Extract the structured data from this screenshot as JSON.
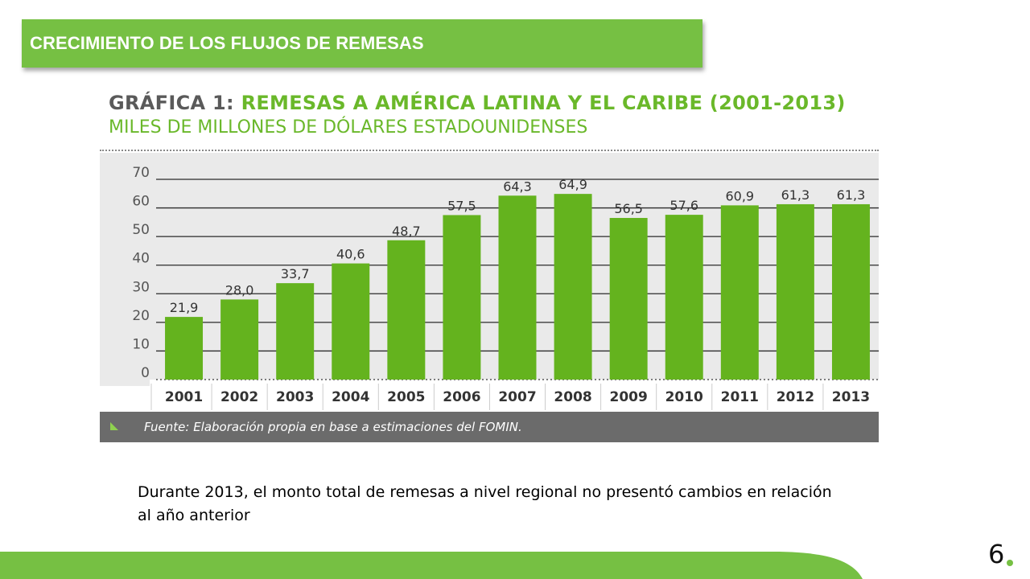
{
  "header": {
    "title": "CRECIMIENTO DE LOS FLUJOS DE REMESAS"
  },
  "chart_data": {
    "type": "bar",
    "title_prefix": "GRÁFICA 1:",
    "title": "REMESAS A AMÉRICA LATINA Y EL CARIBE (2001-2013)",
    "subtitle": "MILES DE MILLONES DE DÓLARES ESTADOUNIDENSES",
    "categories": [
      "2001",
      "2002",
      "2003",
      "2004",
      "2005",
      "2006",
      "2007",
      "2008",
      "2009",
      "2010",
      "2011",
      "2012",
      "2013"
    ],
    "values": [
      21.9,
      28.0,
      33.7,
      40.6,
      48.7,
      57.5,
      64.3,
      64.9,
      56.5,
      57.6,
      60.9,
      61.3,
      61.3
    ],
    "value_labels": [
      "21,9",
      "28,0",
      "33,7",
      "40,6",
      "48,7",
      "57,5",
      "64,3",
      "64,9",
      "56,5",
      "57,6",
      "60,9",
      "61,3",
      "61,3"
    ],
    "ylim": [
      0,
      70
    ],
    "yticks": [
      0,
      10,
      20,
      30,
      40,
      50,
      60,
      70
    ],
    "grid": true,
    "source": "Fuente: Elaboración propia en base a estimaciones del FOMIN.",
    "colors": {
      "bar": "#64b31e",
      "background": "#eaeaea",
      "footer": "#6b6b6b",
      "grid": "#2b2b2b"
    }
  },
  "body": {
    "text": "Durante 2013, el monto total de remesas a nivel regional no presentó cambios en relación al año anterior"
  },
  "page": {
    "number": "6"
  },
  "colors": {
    "accent": "#76c043"
  }
}
